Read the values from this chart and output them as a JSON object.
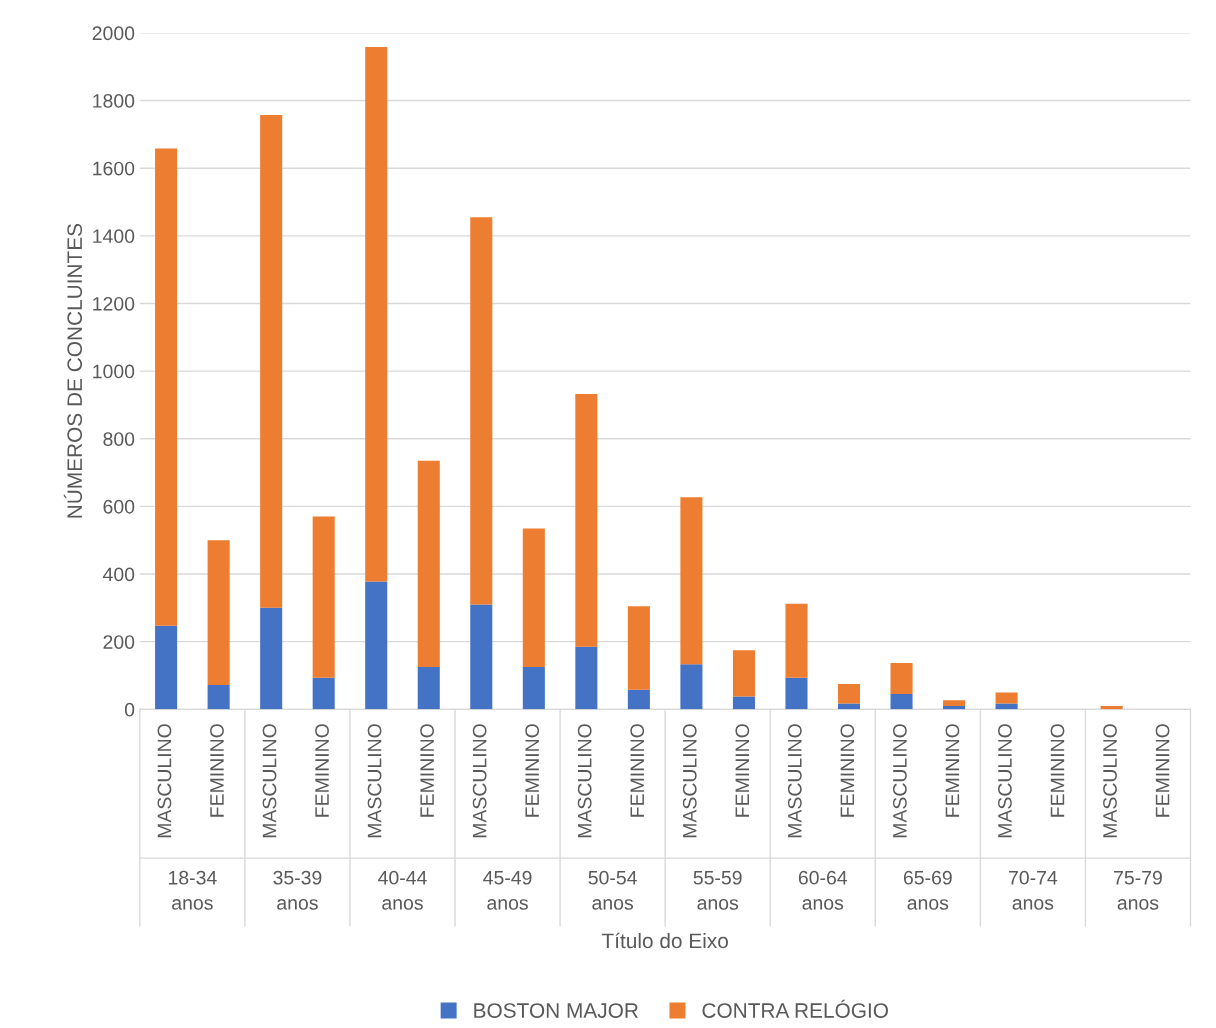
{
  "chart_data": {
    "type": "bar",
    "stacked": true,
    "ylabel": "NÚMEROS DE CONCLUINTES",
    "xlabel": "Título do Eixo",
    "categories": [
      "MASCULINO",
      "FEMININO",
      "MASCULINO",
      "FEMININO",
      "MASCULINO",
      "FEMININO",
      "MASCULINO",
      "FEMININO",
      "MASCULINO",
      "FEMININO",
      "MASCULINO",
      "FEMININO",
      "MASCULINO",
      "FEMININO",
      "MASCULINO",
      "FEMININO",
      "MASCULINO",
      "FEMININO",
      "MASCULINO",
      "FEMININO"
    ],
    "annotations": [
      "18-34\nanos",
      "35-39\nanos",
      "40-44\nanos",
      "45-49\nanos",
      "50-54\nanos",
      "55-59\nanos",
      "60-64\nanos",
      "65-69\nanos",
      "70-74\nanos",
      "75-79\nanos"
    ],
    "series": [
      {
        "name": "BOSTON MAJOR",
        "color": "#4472c4",
        "values": [
          247,
          72,
          300,
          93,
          378,
          125,
          310,
          125,
          185,
          58,
          133,
          38,
          93,
          17,
          45,
          10,
          17,
          0,
          0,
          0
        ]
      },
      {
        "name": "CONTRA RELÓGIO",
        "color": "#ed7d31",
        "values": [
          1411,
          428,
          1457,
          477,
          1580,
          610,
          1145,
          410,
          747,
          247,
          494,
          137,
          219,
          58,
          92,
          17,
          33,
          0,
          10,
          0
        ]
      }
    ],
    "ylim": [
      0,
      2000
    ],
    "yticks": [
      0,
      200,
      400,
      600,
      800,
      1000,
      1200,
      1400,
      1600,
      1800,
      2000
    ],
    "grid": "y",
    "legend": "bottom"
  }
}
